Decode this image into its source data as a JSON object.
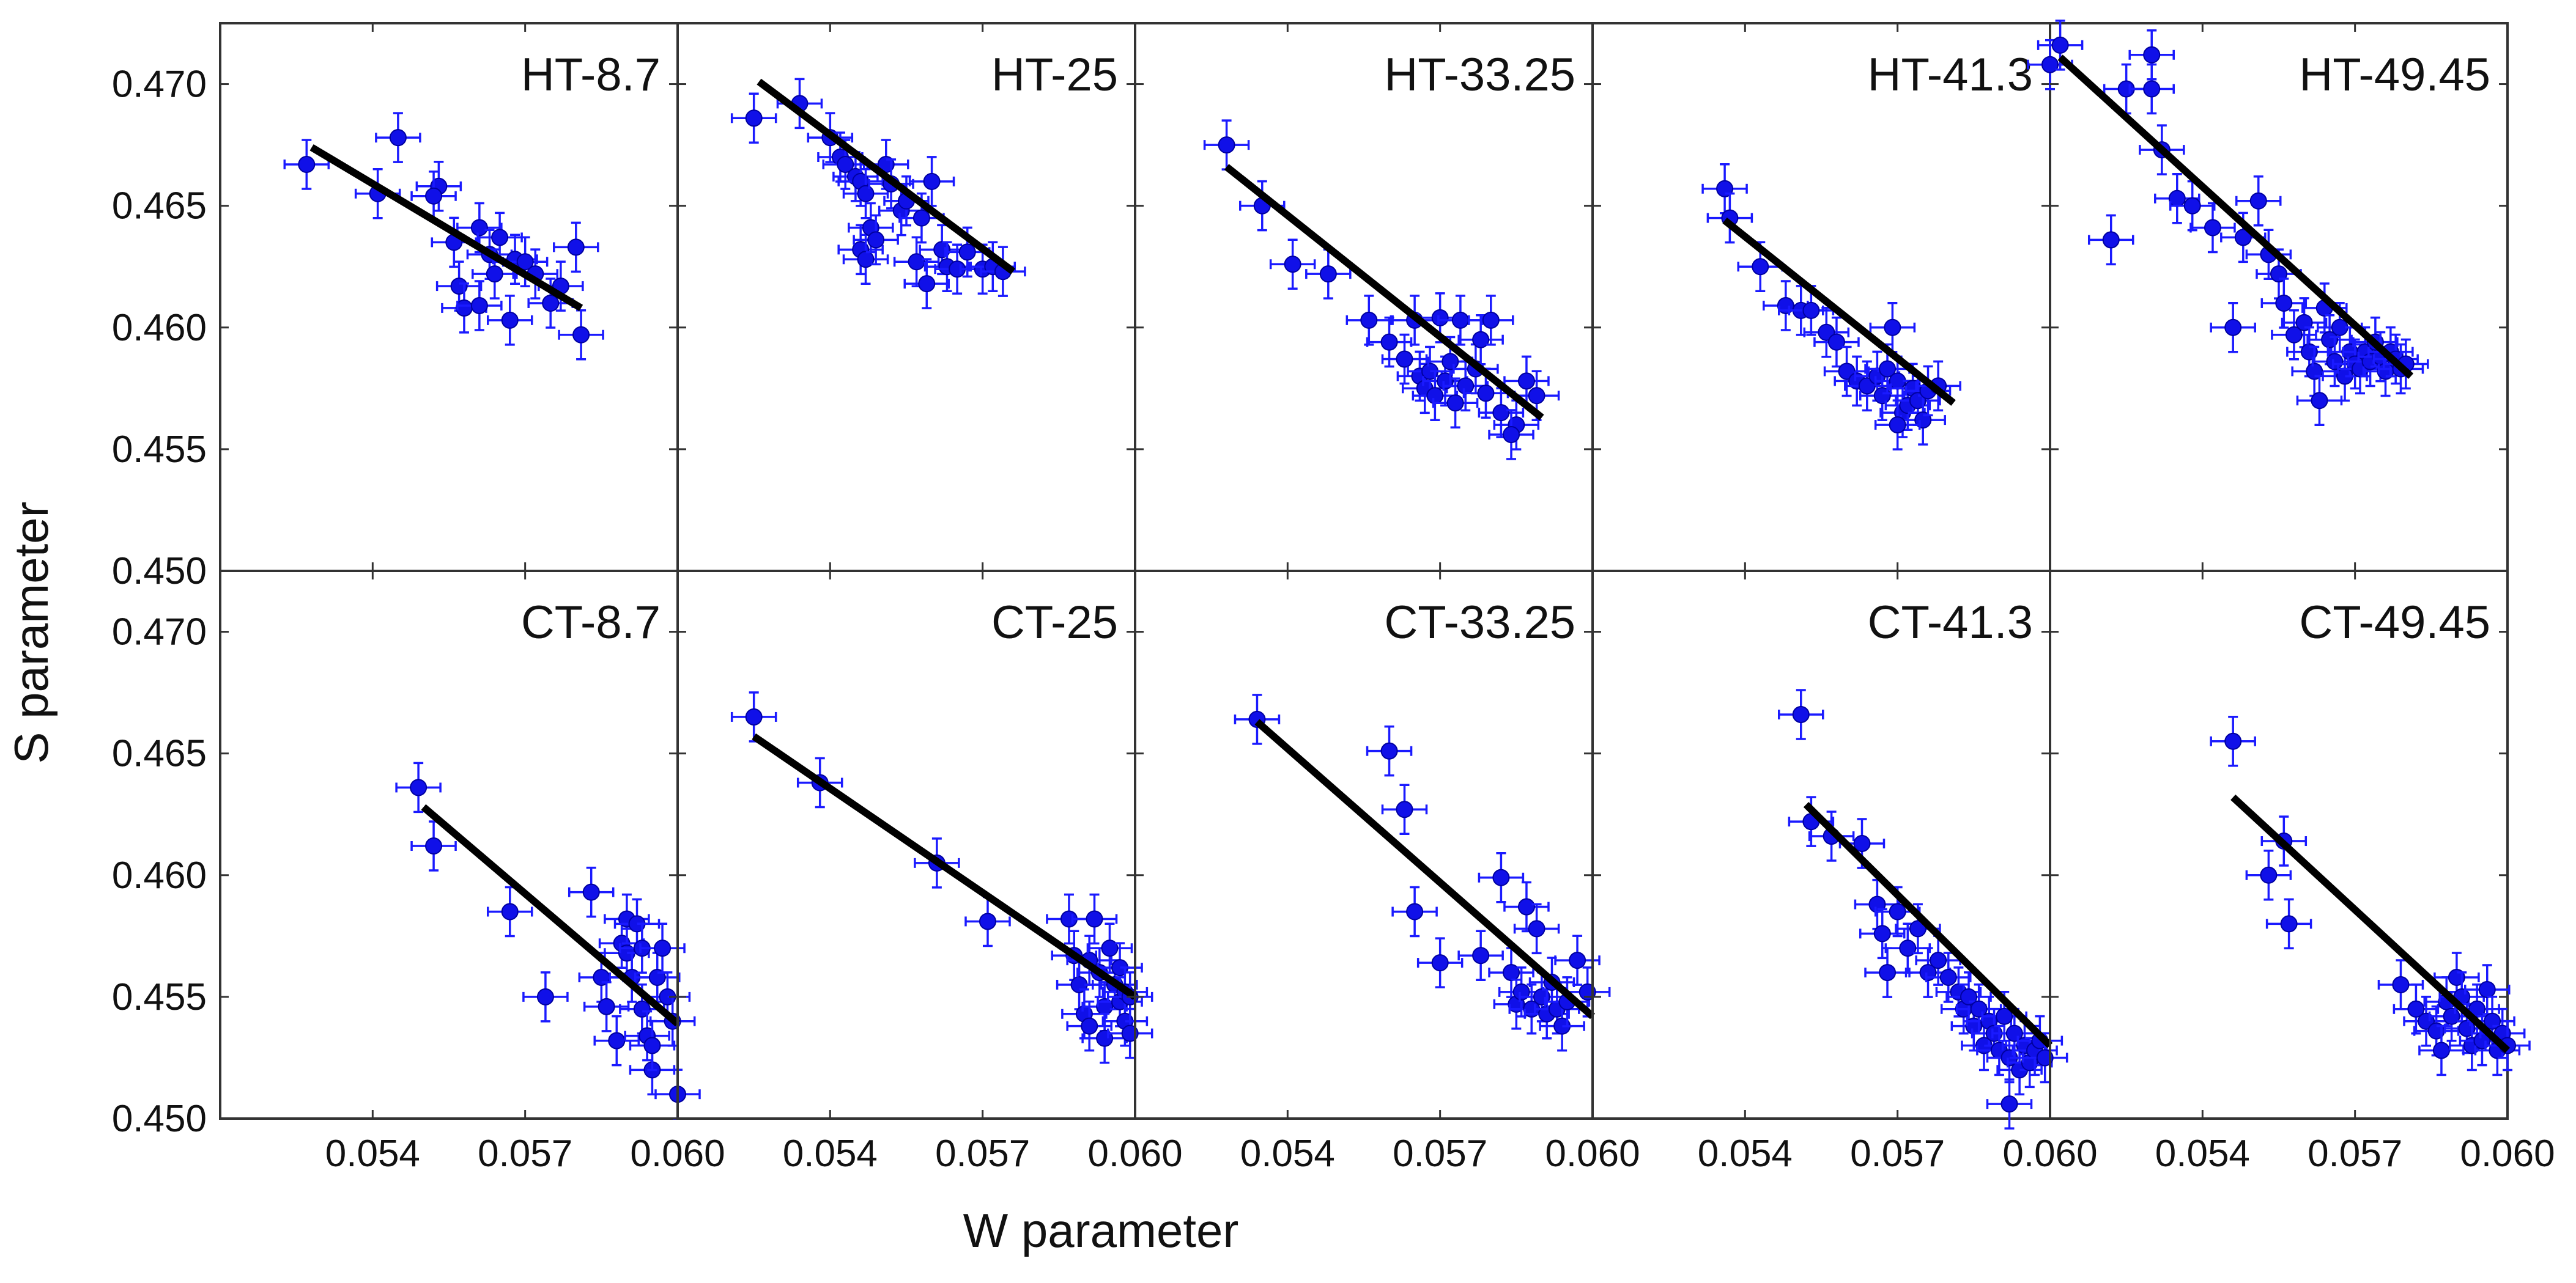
{
  "figure": {
    "xlabel": "W parameter",
    "ylabel": "S parameter"
  },
  "chart_data": {
    "type": "scatter",
    "xlabel": "W parameter",
    "ylabel": "S parameter",
    "xlim": [
      0.051,
      0.06
    ],
    "ylim": [
      0.45,
      0.4725
    ],
    "xticks": [
      0.054,
      0.057,
      0.06
    ],
    "xtick_labels": [
      "0.054",
      "0.057",
      "0.060"
    ],
    "yticks": [
      0.45,
      0.455,
      0.46,
      0.465,
      0.47
    ],
    "ytick_labels": [
      "0.450",
      "0.455",
      "0.460",
      "0.465",
      "0.470"
    ],
    "series_color": "#1010e8",
    "fit_color": "#000000",
    "panels": [
      {
        "title": "HT-8.7",
        "fit": [
          [
            0.0528,
            0.4674
          ],
          [
            0.0581,
            0.4608
          ]
        ],
        "points": [
          [
            0.0527,
            0.4667
          ],
          [
            0.0541,
            0.4655
          ],
          [
            0.0545,
            0.4678
          ],
          [
            0.0553,
            0.4658
          ],
          [
            0.0552,
            0.4654
          ],
          [
            0.0556,
            0.4635
          ],
          [
            0.0557,
            0.4617
          ],
          [
            0.0558,
            0.4608
          ],
          [
            0.0561,
            0.4641
          ],
          [
            0.0561,
            0.4609
          ],
          [
            0.0563,
            0.463
          ],
          [
            0.0564,
            0.4622
          ],
          [
            0.0565,
            0.4637
          ],
          [
            0.0567,
            0.4603
          ],
          [
            0.0568,
            0.4628
          ],
          [
            0.057,
            0.4627
          ],
          [
            0.0572,
            0.4622
          ],
          [
            0.0575,
            0.461
          ],
          [
            0.0577,
            0.4617
          ],
          [
            0.058,
            0.4633
          ],
          [
            0.0581,
            0.4597
          ]
        ]
      },
      {
        "title": "HT-25",
        "fit": [
          [
            0.0526,
            0.4701
          ],
          [
            0.0576,
            0.4623
          ]
        ],
        "points": [
          [
            0.0525,
            0.4686
          ],
          [
            0.0534,
            0.4692
          ],
          [
            0.054,
            0.4678
          ],
          [
            0.0542,
            0.467
          ],
          [
            0.0543,
            0.4667
          ],
          [
            0.0545,
            0.4662
          ],
          [
            0.0546,
            0.466
          ],
          [
            0.0547,
            0.4655
          ],
          [
            0.0546,
            0.4632
          ],
          [
            0.0547,
            0.4628
          ],
          [
            0.0548,
            0.4641
          ],
          [
            0.0549,
            0.4636
          ],
          [
            0.0551,
            0.4667
          ],
          [
            0.0552,
            0.4659
          ],
          [
            0.0554,
            0.4648
          ],
          [
            0.0555,
            0.4652
          ],
          [
            0.0557,
            0.4627
          ],
          [
            0.0558,
            0.4645
          ],
          [
            0.0559,
            0.4618
          ],
          [
            0.056,
            0.466
          ],
          [
            0.0562,
            0.4632
          ],
          [
            0.0563,
            0.4625
          ],
          [
            0.0565,
            0.4624
          ],
          [
            0.0567,
            0.4631
          ],
          [
            0.057,
            0.4624
          ],
          [
            0.0572,
            0.4625
          ],
          [
            0.0574,
            0.4623
          ]
        ]
      },
      {
        "title": "HT-33.25",
        "fit": [
          [
            0.0528,
            0.4666
          ],
          [
            0.059,
            0.4563
          ]
        ],
        "points": [
          [
            0.0528,
            0.4675
          ],
          [
            0.0535,
            0.465
          ],
          [
            0.0541,
            0.4626
          ],
          [
            0.0548,
            0.4622
          ],
          [
            0.0556,
            0.4603
          ],
          [
            0.056,
            0.4594
          ],
          [
            0.0563,
            0.4587
          ],
          [
            0.0565,
            0.4603
          ],
          [
            0.0566,
            0.458
          ],
          [
            0.0567,
            0.4575
          ],
          [
            0.0568,
            0.4582
          ],
          [
            0.0569,
            0.4572
          ],
          [
            0.057,
            0.4604
          ],
          [
            0.0571,
            0.4578
          ],
          [
            0.0572,
            0.4586
          ],
          [
            0.0573,
            0.4569
          ],
          [
            0.0574,
            0.4603
          ],
          [
            0.0575,
            0.4576
          ],
          [
            0.0577,
            0.4583
          ],
          [
            0.0578,
            0.4595
          ],
          [
            0.0579,
            0.4573
          ],
          [
            0.058,
            0.4603
          ],
          [
            0.0582,
            0.4565
          ],
          [
            0.0585,
            0.456
          ],
          [
            0.0587,
            0.4578
          ],
          [
            0.0589,
            0.4572
          ],
          [
            0.0584,
            0.4556
          ]
        ]
      },
      {
        "title": "HT-41.3",
        "fit": [
          [
            0.0536,
            0.4644
          ],
          [
            0.0581,
            0.4569
          ]
        ],
        "points": [
          [
            0.0536,
            0.4657
          ],
          [
            0.0537,
            0.4645
          ],
          [
            0.0543,
            0.4625
          ],
          [
            0.0548,
            0.4609
          ],
          [
            0.0551,
            0.4607
          ],
          [
            0.0553,
            0.4607
          ],
          [
            0.0556,
            0.4598
          ],
          [
            0.0558,
            0.4594
          ],
          [
            0.056,
            0.4582
          ],
          [
            0.0562,
            0.4578
          ],
          [
            0.0564,
            0.4576
          ],
          [
            0.0566,
            0.458
          ],
          [
            0.0567,
            0.4572
          ],
          [
            0.0568,
            0.4583
          ],
          [
            0.0569,
            0.46
          ],
          [
            0.057,
            0.4578
          ],
          [
            0.0571,
            0.4565
          ],
          [
            0.0572,
            0.4568
          ],
          [
            0.0573,
            0.4575
          ],
          [
            0.0574,
            0.457
          ],
          [
            0.0575,
            0.4562
          ],
          [
            0.0576,
            0.4574
          ],
          [
            0.0578,
            0.4576
          ],
          [
            0.057,
            0.456
          ]
        ]
      },
      {
        "title": "HT-49.45",
        "fit": [
          [
            0.0512,
            0.4711
          ],
          [
            0.0581,
            0.458
          ]
        ],
        "points": [
          [
            0.051,
            0.4708
          ],
          [
            0.0512,
            0.4716
          ],
          [
            0.0522,
            0.4636
          ],
          [
            0.0525,
            0.4698
          ],
          [
            0.053,
            0.4712
          ],
          [
            0.053,
            0.4698
          ],
          [
            0.0532,
            0.4673
          ],
          [
            0.0535,
            0.4653
          ],
          [
            0.0538,
            0.465
          ],
          [
            0.0542,
            0.4641
          ],
          [
            0.0546,
            0.46
          ],
          [
            0.0548,
            0.4637
          ],
          [
            0.0551,
            0.4652
          ],
          [
            0.0553,
            0.463
          ],
          [
            0.0555,
            0.4622
          ],
          [
            0.0556,
            0.461
          ],
          [
            0.0558,
            0.4597
          ],
          [
            0.056,
            0.4602
          ],
          [
            0.0561,
            0.459
          ],
          [
            0.0562,
            0.4582
          ],
          [
            0.0563,
            0.457
          ],
          [
            0.0564,
            0.4608
          ],
          [
            0.0565,
            0.4595
          ],
          [
            0.0566,
            0.4586
          ],
          [
            0.0567,
            0.46
          ],
          [
            0.0568,
            0.458
          ],
          [
            0.0569,
            0.459
          ],
          [
            0.057,
            0.4585
          ],
          [
            0.0571,
            0.4583
          ],
          [
            0.0572,
            0.459
          ],
          [
            0.0573,
            0.4586
          ],
          [
            0.0574,
            0.4594
          ],
          [
            0.0575,
            0.4588
          ],
          [
            0.0576,
            0.4582
          ],
          [
            0.0577,
            0.459
          ],
          [
            0.0578,
            0.4587
          ],
          [
            0.0579,
            0.4583
          ],
          [
            0.058,
            0.4585
          ]
        ]
      },
      {
        "title": "CT-8.7",
        "fit": [
          [
            0.055,
            0.4628
          ],
          [
            0.06,
            0.4539
          ]
        ],
        "points": [
          [
            0.0549,
            0.4636
          ],
          [
            0.0552,
            0.4612
          ],
          [
            0.0567,
            0.4585
          ],
          [
            0.0574,
            0.455
          ],
          [
            0.0583,
            0.4593
          ],
          [
            0.0585,
            0.4558
          ],
          [
            0.0586,
            0.4546
          ],
          [
            0.0588,
            0.4532
          ],
          [
            0.0589,
            0.4572
          ],
          [
            0.059,
            0.4582
          ],
          [
            0.059,
            0.4568
          ],
          [
            0.0591,
            0.4558
          ],
          [
            0.0592,
            0.458
          ],
          [
            0.0593,
            0.457
          ],
          [
            0.0593,
            0.4545
          ],
          [
            0.0594,
            0.4534
          ],
          [
            0.0595,
            0.452
          ],
          [
            0.0596,
            0.4558
          ],
          [
            0.0597,
            0.457
          ],
          [
            0.0598,
            0.455
          ],
          [
            0.0599,
            0.454
          ],
          [
            0.06,
            0.451
          ],
          [
            0.0595,
            0.453
          ]
        ]
      },
      {
        "title": "CT-25",
        "fit": [
          [
            0.0525,
            0.4657
          ],
          [
            0.06,
            0.455
          ]
        ],
        "points": [
          [
            0.0525,
            0.4665
          ],
          [
            0.0538,
            0.4638
          ],
          [
            0.0561,
            0.4605
          ],
          [
            0.0571,
            0.4581
          ],
          [
            0.0587,
            0.4582
          ],
          [
            0.0588,
            0.4567
          ],
          [
            0.0589,
            0.4555
          ],
          [
            0.059,
            0.4543
          ],
          [
            0.0591,
            0.4565
          ],
          [
            0.0591,
            0.4538
          ],
          [
            0.0592,
            0.4582
          ],
          [
            0.0593,
            0.456
          ],
          [
            0.0594,
            0.4546
          ],
          [
            0.0594,
            0.4533
          ],
          [
            0.0595,
            0.457
          ],
          [
            0.0596,
            0.4555
          ],
          [
            0.0597,
            0.4562
          ],
          [
            0.0597,
            0.4548
          ],
          [
            0.0598,
            0.4552
          ],
          [
            0.0598,
            0.454
          ],
          [
            0.0599,
            0.455
          ],
          [
            0.0599,
            0.4535
          ]
        ]
      },
      {
        "title": "CT-33.25",
        "fit": [
          [
            0.0534,
            0.4663
          ],
          [
            0.06,
            0.4542
          ]
        ],
        "points": [
          [
            0.0534,
            0.4664
          ],
          [
            0.056,
            0.4651
          ],
          [
            0.0563,
            0.4627
          ],
          [
            0.0565,
            0.4585
          ],
          [
            0.057,
            0.4564
          ],
          [
            0.0578,
            0.4567
          ],
          [
            0.0582,
            0.4599
          ],
          [
            0.0584,
            0.456
          ],
          [
            0.0585,
            0.4547
          ],
          [
            0.0586,
            0.4552
          ],
          [
            0.0587,
            0.4587
          ],
          [
            0.0588,
            0.4545
          ],
          [
            0.0589,
            0.4578
          ],
          [
            0.059,
            0.455
          ],
          [
            0.0591,
            0.4543
          ],
          [
            0.0592,
            0.4556
          ],
          [
            0.0593,
            0.4545
          ],
          [
            0.0594,
            0.4538
          ],
          [
            0.0595,
            0.4548
          ],
          [
            0.0597,
            0.4565
          ],
          [
            0.0599,
            0.4552
          ]
        ]
      },
      {
        "title": "CT-41.3",
        "fit": [
          [
            0.0552,
            0.4629
          ],
          [
            0.06,
            0.453
          ]
        ],
        "points": [
          [
            0.0551,
            0.4666
          ],
          [
            0.0553,
            0.4622
          ],
          [
            0.0557,
            0.4616
          ],
          [
            0.0563,
            0.4613
          ],
          [
            0.0566,
            0.4588
          ],
          [
            0.0567,
            0.4576
          ],
          [
            0.0568,
            0.456
          ],
          [
            0.057,
            0.4585
          ],
          [
            0.0572,
            0.457
          ],
          [
            0.0574,
            0.4578
          ],
          [
            0.0576,
            0.456
          ],
          [
            0.0578,
            0.4565
          ],
          [
            0.058,
            0.4558
          ],
          [
            0.0582,
            0.4552
          ],
          [
            0.0583,
            0.4545
          ],
          [
            0.0584,
            0.455
          ],
          [
            0.0585,
            0.4538
          ],
          [
            0.0586,
            0.4545
          ],
          [
            0.0587,
            0.453
          ],
          [
            0.0588,
            0.454
          ],
          [
            0.0589,
            0.4535
          ],
          [
            0.059,
            0.4528
          ],
          [
            0.0591,
            0.4542
          ],
          [
            0.0592,
            0.4525
          ],
          [
            0.0593,
            0.4535
          ],
          [
            0.0594,
            0.452
          ],
          [
            0.0595,
            0.453
          ],
          [
            0.0596,
            0.4523
          ],
          [
            0.0597,
            0.4528
          ],
          [
            0.0598,
            0.4532
          ],
          [
            0.0599,
            0.4525
          ],
          [
            0.0592,
            0.4506
          ]
        ]
      },
      {
        "title": "CT-49.45",
        "fit": [
          [
            0.0546,
            0.4632
          ],
          [
            0.06,
            0.4528
          ]
        ],
        "points": [
          [
            0.0546,
            0.4655
          ],
          [
            0.0553,
            0.46
          ],
          [
            0.0556,
            0.4614
          ],
          [
            0.0557,
            0.458
          ],
          [
            0.0579,
            0.4555
          ],
          [
            0.0582,
            0.4545
          ],
          [
            0.0584,
            0.454
          ],
          [
            0.0586,
            0.4536
          ],
          [
            0.0587,
            0.4528
          ],
          [
            0.0588,
            0.4548
          ],
          [
            0.0589,
            0.4542
          ],
          [
            0.059,
            0.4558
          ],
          [
            0.0591,
            0.455
          ],
          [
            0.0592,
            0.4537
          ],
          [
            0.0593,
            0.453
          ],
          [
            0.0594,
            0.4545
          ],
          [
            0.0595,
            0.4532
          ],
          [
            0.0596,
            0.4553
          ],
          [
            0.0597,
            0.454
          ],
          [
            0.0598,
            0.4528
          ],
          [
            0.0599,
            0.4535
          ],
          [
            0.06,
            0.453
          ]
        ]
      }
    ]
  }
}
